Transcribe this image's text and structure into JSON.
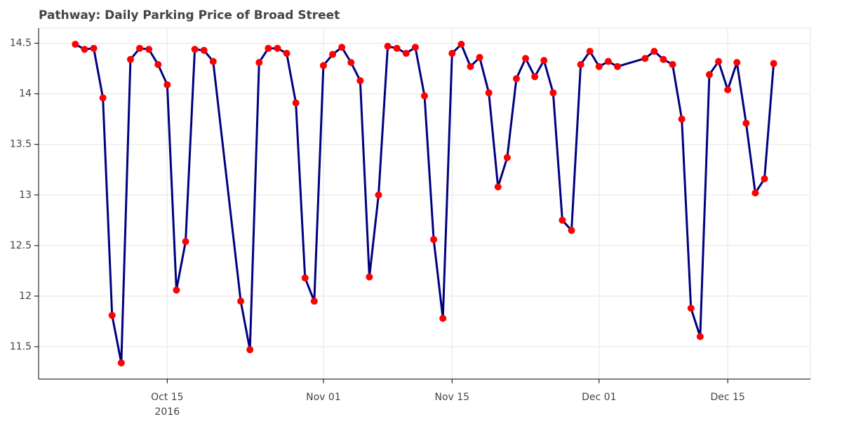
{
  "chart_data": {
    "type": "line",
    "title": "Pathway: Daily Parking Price of Broad Street",
    "x": [
      "2016-10-05",
      "2016-10-06",
      "2016-10-07",
      "2016-10-08",
      "2016-10-09",
      "2016-10-10",
      "2016-10-11",
      "2016-10-12",
      "2016-10-13",
      "2016-10-14",
      "2016-10-15",
      "2016-10-16",
      "2016-10-17",
      "2016-10-18",
      "2016-10-19",
      "2016-10-20",
      "2016-10-23",
      "2016-10-24",
      "2016-10-25",
      "2016-10-26",
      "2016-10-27",
      "2016-10-28",
      "2016-10-29",
      "2016-10-30",
      "2016-10-31",
      "2016-11-01",
      "2016-11-02",
      "2016-11-03",
      "2016-11-04",
      "2016-11-05",
      "2016-11-06",
      "2016-11-07",
      "2016-11-08",
      "2016-11-09",
      "2016-11-10",
      "2016-11-11",
      "2016-11-12",
      "2016-11-13",
      "2016-11-14",
      "2016-11-15",
      "2016-11-16",
      "2016-11-17",
      "2016-11-18",
      "2016-11-19",
      "2016-11-20",
      "2016-11-21",
      "2016-11-22",
      "2016-11-23",
      "2016-11-24",
      "2016-11-25",
      "2016-11-26",
      "2016-11-27",
      "2016-11-28",
      "2016-11-29",
      "2016-11-30",
      "2016-12-01",
      "2016-12-02",
      "2016-12-03",
      "2016-12-06",
      "2016-12-07",
      "2016-12-08",
      "2016-12-09",
      "2016-12-10",
      "2016-12-11",
      "2016-12-12",
      "2016-12-13",
      "2016-12-14",
      "2016-12-15",
      "2016-12-16",
      "2016-12-17",
      "2016-12-18",
      "2016-12-19",
      "2016-12-20"
    ],
    "series": [
      {
        "name": "Broad Street",
        "color": "#000080",
        "marker_color": "#ff0000",
        "values": [
          14.49,
          14.44,
          14.45,
          13.96,
          11.81,
          11.34,
          14.34,
          14.45,
          14.44,
          14.29,
          14.09,
          12.06,
          12.54,
          14.44,
          14.43,
          14.32,
          11.95,
          11.47,
          14.31,
          14.45,
          14.45,
          14.4,
          13.91,
          12.18,
          11.95,
          14.28,
          14.39,
          14.46,
          14.31,
          14.13,
          12.19,
          13.0,
          14.47,
          14.45,
          14.4,
          14.46,
          13.98,
          12.56,
          11.78,
          14.4,
          14.49,
          14.27,
          14.36,
          14.01,
          13.08,
          13.37,
          14.15,
          14.35,
          14.17,
          14.33,
          14.01,
          12.75,
          12.65,
          14.29,
          14.42,
          14.27,
          14.32,
          14.27,
          14.35,
          14.42,
          14.34,
          14.29,
          13.75,
          11.88,
          11.6,
          14.19,
          14.32,
          14.04,
          14.31,
          13.71,
          13.02,
          13.16,
          14.3
        ]
      }
    ],
    "xlim": [
      "2016-10-01",
      "2016-12-24"
    ],
    "xticks": [
      {
        "value": "2016-10-15",
        "label": "Oct 15"
      },
      {
        "value": "2016-11-01",
        "label": "Nov 01"
      },
      {
        "value": "2016-11-15",
        "label": "Nov 15"
      },
      {
        "value": "2016-12-01",
        "label": "Dec 01"
      },
      {
        "value": "2016-12-15",
        "label": "Dec 15"
      }
    ],
    "year_label": "2016",
    "ylim": [
      11.18,
      14.65
    ],
    "yticks": [
      11.5,
      12,
      12.5,
      13,
      13.5,
      14,
      14.5
    ],
    "grid": true
  }
}
